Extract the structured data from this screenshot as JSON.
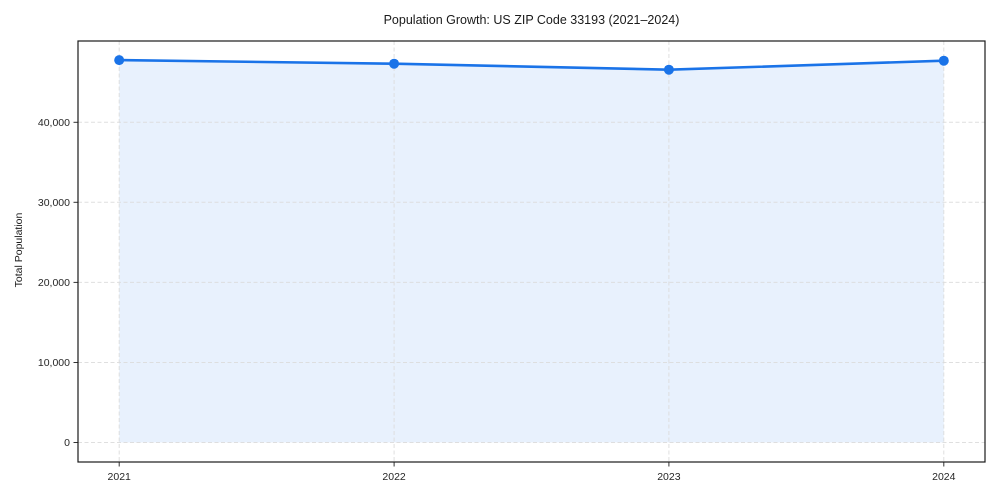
{
  "chart_data": {
    "type": "area",
    "title": "Population Growth: US ZIP Code 33193 (2021–2024)",
    "xlabel": "",
    "ylabel": "Total Population",
    "x": [
      2021,
      2022,
      2023,
      2024
    ],
    "series": [
      {
        "name": "Total Population",
        "values": [
          47760,
          47310,
          46560,
          47690
        ]
      }
    ],
    "values": [
      47760,
      47310,
      46560,
      47690
    ],
    "xticks": [
      2021,
      2022,
      2023,
      2024
    ],
    "yticks": [
      0,
      10000,
      20000,
      30000,
      40000
    ],
    "ytick_labels": [
      "0",
      "10,000",
      "20,000",
      "30,000",
      "40,000"
    ],
    "xlim": [
      2020.85,
      2024.15
    ],
    "ylim": [
      -2430,
      50150
    ],
    "grid": true,
    "grid_style": "dashed",
    "legend": false,
    "area_baseline": 0,
    "colors": {
      "line": "#1a73e8",
      "marker": "#1a73e8",
      "fill": "#1a73e8",
      "fill_opacity": 0.1,
      "grid": "#dcdcdc",
      "spine": "#1a1a1a",
      "tick": "#333333",
      "text": "#262626",
      "background": "#ffffff"
    }
  }
}
